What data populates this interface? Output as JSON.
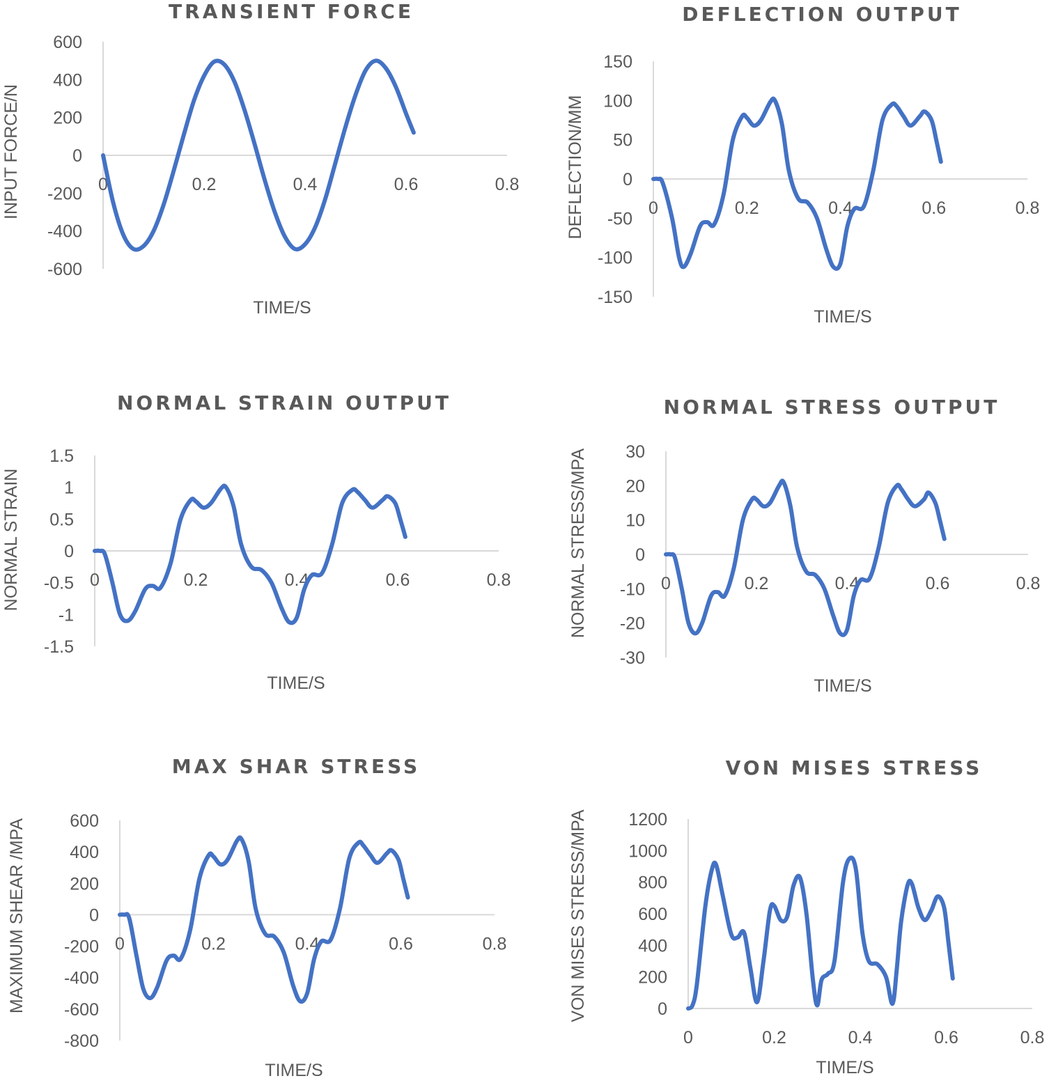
{
  "chart_data": [
    {
      "type": "line",
      "title": "TRANSIENT FORCE",
      "xlabel": "TIME/S",
      "ylabel": "INPUT FORCE/N",
      "xlim": [
        0,
        0.8
      ],
      "ylim": [
        -600,
        600
      ],
      "xticks": [
        "0",
        "0.2",
        "0.4",
        "0.6",
        "0.8"
      ],
      "yticks": [
        "600",
        "400",
        "200",
        "0",
        "-200",
        "-400",
        "-600"
      ],
      "series": [
        {
          "name": "Input force",
          "x": [
            0,
            0.02,
            0.04,
            0.06,
            0.08,
            0.1,
            0.12,
            0.14,
            0.16,
            0.18,
            0.2,
            0.22,
            0.24,
            0.26,
            0.28,
            0.3,
            0.32,
            0.34,
            0.36,
            0.38,
            0.4,
            0.42,
            0.44,
            0.46,
            0.48,
            0.5,
            0.52,
            0.54,
            0.56,
            0.58,
            0.6,
            0.615
          ],
          "y": [
            0,
            -250,
            -420,
            -495,
            -480,
            -400,
            -260,
            -80,
            110,
            290,
            420,
            495,
            480,
            390,
            240,
            60,
            -130,
            -300,
            -430,
            -495,
            -470,
            -380,
            -230,
            -40,
            150,
            320,
            450,
            500,
            460,
            360,
            220,
            120
          ]
        }
      ]
    },
    {
      "type": "line",
      "title": "DEFLECTION OUTPUT",
      "xlabel": "TIME/S",
      "ylabel": "DEFLECTION/MM",
      "xlim": [
        0,
        0.8
      ],
      "ylim": [
        -150,
        150
      ],
      "xticks": [
        "0",
        "0.2",
        "0.4",
        "0.6",
        "0.8"
      ],
      "yticks": [
        "150",
        "100",
        "50",
        "0",
        "-50",
        "-100",
        "-150"
      ],
      "series": [
        {
          "name": "Deflection",
          "x": [
            0,
            0.01,
            0.02,
            0.04,
            0.055,
            0.065,
            0.08,
            0.1,
            0.115,
            0.13,
            0.15,
            0.17,
            0.19,
            0.2,
            0.215,
            0.23,
            0.25,
            0.26,
            0.275,
            0.29,
            0.31,
            0.33,
            0.35,
            0.37,
            0.385,
            0.4,
            0.415,
            0.43,
            0.45,
            0.47,
            0.49,
            0.51,
            0.52,
            0.535,
            0.55,
            0.57,
            0.58,
            0.595,
            0.605,
            0.615
          ],
          "y": [
            0,
            0,
            -5,
            -50,
            -100,
            -112,
            -95,
            -60,
            -55,
            -58,
            -20,
            50,
            80,
            78,
            68,
            75,
            98,
            100,
            70,
            10,
            -25,
            -30,
            -50,
            -90,
            -112,
            -108,
            -60,
            -38,
            -35,
            10,
            75,
            95,
            93,
            80,
            68,
            80,
            86,
            75,
            50,
            22
          ]
        }
      ]
    },
    {
      "type": "line",
      "title": "NORMAL STRAIN OUTPUT",
      "xlabel": "TIME/S",
      "ylabel": "NORMAL STRAIN",
      "xlim": [
        0,
        0.8
      ],
      "ylim": [
        -1.5,
        1.5
      ],
      "xticks": [
        "0",
        "0.2",
        "0.4",
        "0.6",
        "0.8"
      ],
      "yticks": [
        "1.5",
        "1",
        "0.5",
        "0",
        "-0.5",
        "-1",
        "-1.5"
      ],
      "series": [
        {
          "name": "Normal strain",
          "x": [
            0,
            0.01,
            0.02,
            0.035,
            0.05,
            0.065,
            0.08,
            0.1,
            0.115,
            0.13,
            0.15,
            0.17,
            0.19,
            0.2,
            0.215,
            0.23,
            0.25,
            0.26,
            0.275,
            0.29,
            0.31,
            0.33,
            0.35,
            0.37,
            0.385,
            0.4,
            0.415,
            0.43,
            0.45,
            0.47,
            0.49,
            0.51,
            0.52,
            0.535,
            0.55,
            0.57,
            0.58,
            0.595,
            0.605,
            0.615
          ],
          "y": [
            0,
            0,
            -0.05,
            -0.5,
            -1.0,
            -1.1,
            -0.95,
            -0.6,
            -0.55,
            -0.58,
            -0.2,
            0.5,
            0.8,
            0.78,
            0.68,
            0.75,
            0.98,
            1.0,
            0.7,
            0.1,
            -0.25,
            -0.3,
            -0.5,
            -0.9,
            -1.12,
            -1.05,
            -0.6,
            -0.38,
            -0.35,
            0.1,
            0.75,
            0.96,
            0.93,
            0.8,
            0.68,
            0.8,
            0.86,
            0.75,
            0.5,
            0.22
          ]
        }
      ]
    },
    {
      "type": "line",
      "title": "NORMAL STRESS OUTPUT",
      "xlabel": "TIME/S",
      "ylabel": "NORMAL STRESS/MPA",
      "xlim": [
        0,
        0.8
      ],
      "ylim": [
        -30,
        30
      ],
      "xticks": [
        "0",
        "0.2",
        "0.4",
        "0.6",
        "0.8"
      ],
      "yticks": [
        "30",
        "20",
        "10",
        "0",
        "-10",
        "-20",
        "-30"
      ],
      "series": [
        {
          "name": "Normal stress",
          "x": [
            0,
            0.01,
            0.02,
            0.035,
            0.05,
            0.065,
            0.08,
            0.1,
            0.115,
            0.13,
            0.15,
            0.17,
            0.19,
            0.2,
            0.215,
            0.23,
            0.25,
            0.26,
            0.275,
            0.29,
            0.31,
            0.33,
            0.35,
            0.37,
            0.385,
            0.4,
            0.415,
            0.43,
            0.45,
            0.47,
            0.49,
            0.51,
            0.52,
            0.535,
            0.55,
            0.57,
            0.58,
            0.595,
            0.605,
            0.615
          ],
          "y": [
            0,
            0,
            -1,
            -10,
            -20,
            -23,
            -20,
            -12,
            -11,
            -12,
            -4,
            10,
            16,
            16,
            14,
            15,
            20,
            21,
            14,
            2,
            -5,
            -6,
            -10,
            -18,
            -23,
            -22,
            -12,
            -7.5,
            -7,
            2,
            15,
            20,
            19,
            16,
            14,
            16,
            18,
            15,
            10,
            4.5
          ]
        }
      ]
    },
    {
      "type": "line",
      "title": "MAX SHAR STRESS",
      "xlabel": "TIME/S",
      "ylabel": "MAXIMUM  SHEAR /MPA",
      "xlim": [
        0,
        0.8
      ],
      "ylim": [
        -800,
        600
      ],
      "xticks": [
        "0",
        "0.2",
        "0.4",
        "0.6",
        "0.8"
      ],
      "yticks": [
        "600",
        "400",
        "200",
        "0",
        "-200",
        "-400",
        "-600",
        "-800"
      ],
      "series": [
        {
          "name": "Maximum shear",
          "x": [
            0,
            0.01,
            0.02,
            0.035,
            0.05,
            0.065,
            0.08,
            0.1,
            0.115,
            0.13,
            0.15,
            0.17,
            0.19,
            0.2,
            0.215,
            0.23,
            0.25,
            0.26,
            0.275,
            0.29,
            0.31,
            0.33,
            0.35,
            0.37,
            0.385,
            0.4,
            0.415,
            0.43,
            0.45,
            0.47,
            0.49,
            0.51,
            0.52,
            0.535,
            0.55,
            0.57,
            0.58,
            0.595,
            0.605,
            0.615
          ],
          "y": [
            0,
            0,
            -20,
            -250,
            -470,
            -530,
            -460,
            -290,
            -260,
            -280,
            -100,
            230,
            380,
            370,
            320,
            350,
            470,
            480,
            340,
            40,
            -120,
            -140,
            -240,
            -450,
            -550,
            -500,
            -280,
            -170,
            -160,
            40,
            360,
            460,
            440,
            380,
            330,
            390,
            410,
            350,
            230,
            110
          ]
        }
      ]
    },
    {
      "type": "line",
      "title": "VON MISES STRESS",
      "xlabel": "TIME/S",
      "ylabel": "VON MISES STRESS/MPA",
      "xlim": [
        0,
        0.8
      ],
      "ylim": [
        0,
        1200
      ],
      "xticks": [
        "0",
        "0.2",
        "0.4",
        "0.6",
        "0.8"
      ],
      "yticks": [
        "1200",
        "1000",
        "800",
        "600",
        "400",
        "200",
        "0"
      ],
      "series": [
        {
          "name": "Von Mises stress",
          "x": [
            0,
            0.01,
            0.02,
            0.04,
            0.055,
            0.065,
            0.08,
            0.1,
            0.115,
            0.13,
            0.145,
            0.16,
            0.175,
            0.19,
            0.2,
            0.215,
            0.23,
            0.245,
            0.26,
            0.275,
            0.29,
            0.3,
            0.31,
            0.325,
            0.34,
            0.36,
            0.375,
            0.39,
            0.405,
            0.42,
            0.44,
            0.46,
            0.475,
            0.485,
            0.495,
            0.51,
            0.52,
            0.535,
            0.55,
            0.565,
            0.58,
            0.595,
            0.605,
            0.615
          ],
          "y": [
            0,
            20,
            150,
            650,
            880,
            910,
            720,
            470,
            450,
            480,
            250,
            40,
            300,
            620,
            650,
            560,
            580,
            780,
            830,
            600,
            180,
            20,
            180,
            220,
            300,
            800,
            950,
            880,
            480,
            300,
            280,
            200,
            30,
            250,
            550,
            780,
            790,
            640,
            560,
            620,
            710,
            640,
            420,
            190
          ]
        }
      ]
    }
  ]
}
